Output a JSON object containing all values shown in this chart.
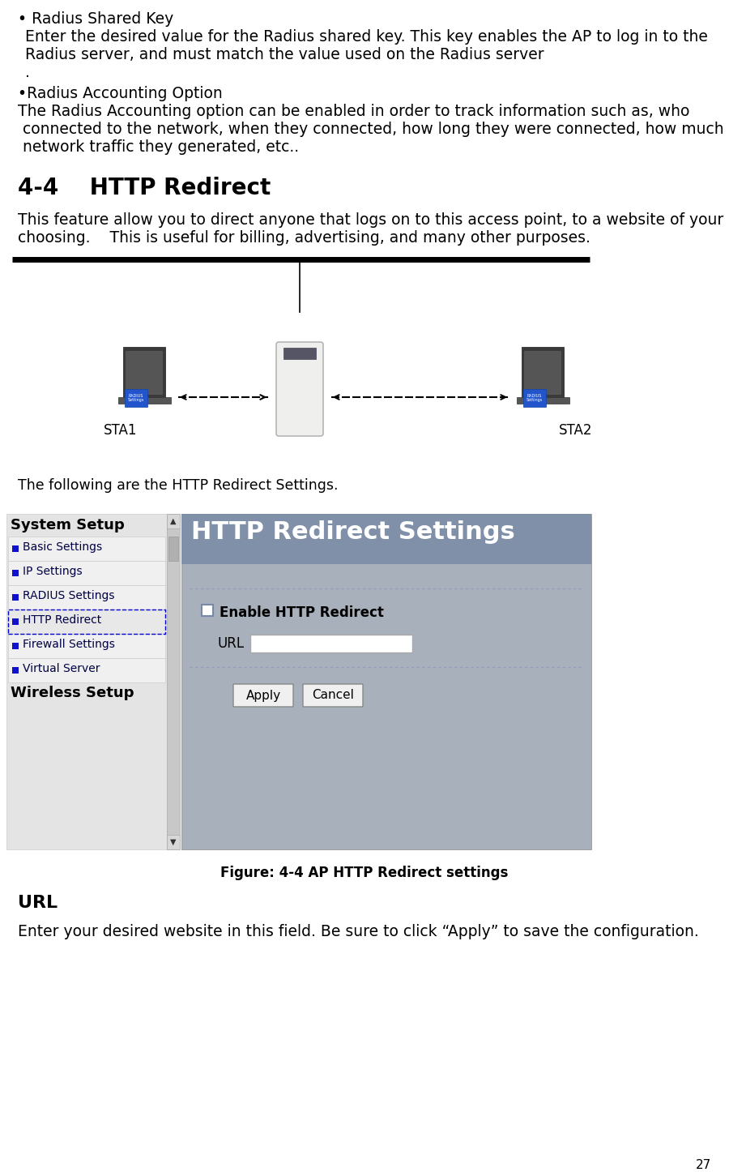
{
  "page_number": "27",
  "bg_color": "#ffffff",
  "text_color": "#000000",
  "section_heading": "4-4    HTTP Redirect",
  "intro_text_line1": "This feature allow you to direct anyone that logs on to this access point, to a website of your",
  "intro_text_line2": "choosing.    This is useful for billing, advertising, and many other purposes.",
  "figure_caption": "Figure: 4-4 AP HTTP Redirect settings",
  "url_heading": "URL",
  "url_body": "Enter your desired website in this field. Be sure to click “Apply” to save the configuration.",
  "following_text": "The following are the HTTP Redirect Settings.",
  "sidebar_items": [
    "Basic Settings",
    "IP Settings",
    "RADIUS Settings",
    "HTTP Redirect",
    "Firewall Settings",
    "Virtual Server"
  ],
  "sidebar_header": "System Setup",
  "sidebar_footer": "Wireless Setup",
  "sidebar_selected": "HTTP Redirect",
  "panel_header": "HTTP Redirect Settings",
  "panel_header_bg": "#8090a8",
  "panel_bg": "#a8b0bc",
  "sidebar_bg": "#e8e8e8",
  "checkbox_text": "Enable HTTP Redirect",
  "url_label": "URL",
  "button1": "Apply",
  "button2": "Cancel",
  "sta1_label": "STA1",
  "sta2_label": "STA2",
  "bullet1_title": "• Radius Shared Key",
  "bullet1_body_line1": " Enter the desired value for the Radius shared key. This key enables the AP to log in to the",
  "bullet1_body_line2": " Radius server, and must match the value used on the Radius server",
  "bullet1_body_line3": " .",
  "bullet2_title": "•Radius Accounting Option",
  "bullet2_body_line1": "The Radius Accounting option can be enabled in order to track information such as, who",
  "bullet2_body_line2": " connected to the network, when they connected, how long they were connected, how much",
  "bullet2_body_line3": " network traffic they generated, etc.."
}
